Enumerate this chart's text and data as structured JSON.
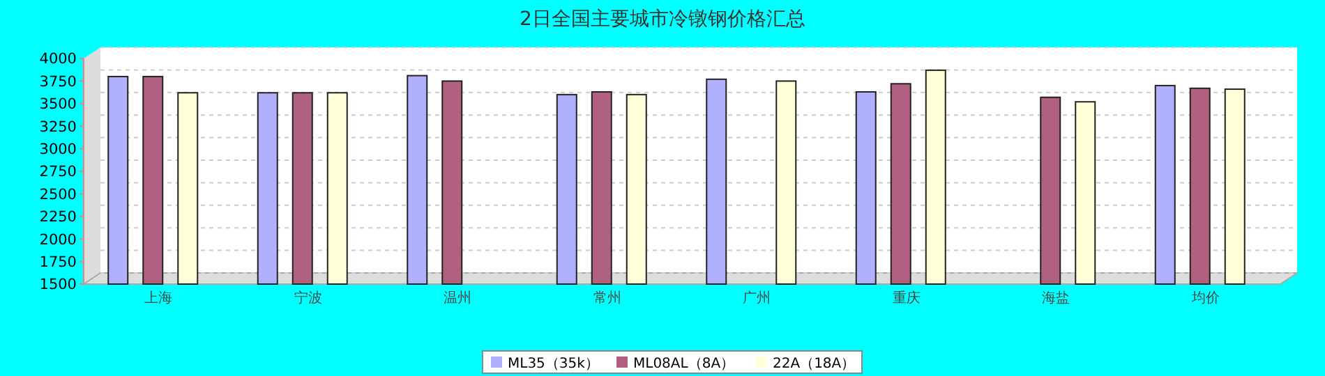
{
  "chart_data": {
    "type": "bar",
    "title": "2日全国主要城市冷镦钢价格汇总",
    "categories": [
      "上海",
      "宁波",
      "温州",
      "常州",
      "广州",
      "重庆",
      "海盐",
      "均价"
    ],
    "series": [
      {
        "name": "ML35（35k）",
        "color": "#b0b0ff",
        "values": [
          3800,
          3620,
          3810,
          3600,
          3770,
          3630,
          null,
          3700
        ]
      },
      {
        "name": "ML08AL（8A）",
        "color": "#b06080",
        "values": [
          3800,
          3620,
          3750,
          3630,
          null,
          3720,
          3570,
          3670
        ]
      },
      {
        "name": "22A（18A）",
        "color": "#ffffd8",
        "values": [
          3620,
          3620,
          null,
          3600,
          3750,
          3870,
          3520,
          3660
        ]
      }
    ],
    "ylim": [
      1500,
      4000
    ],
    "yticks": [
      1500,
      1750,
      2000,
      2250,
      2500,
      2750,
      3000,
      3250,
      3500,
      3750,
      4000
    ],
    "grid": "y",
    "legend": "bottom"
  }
}
